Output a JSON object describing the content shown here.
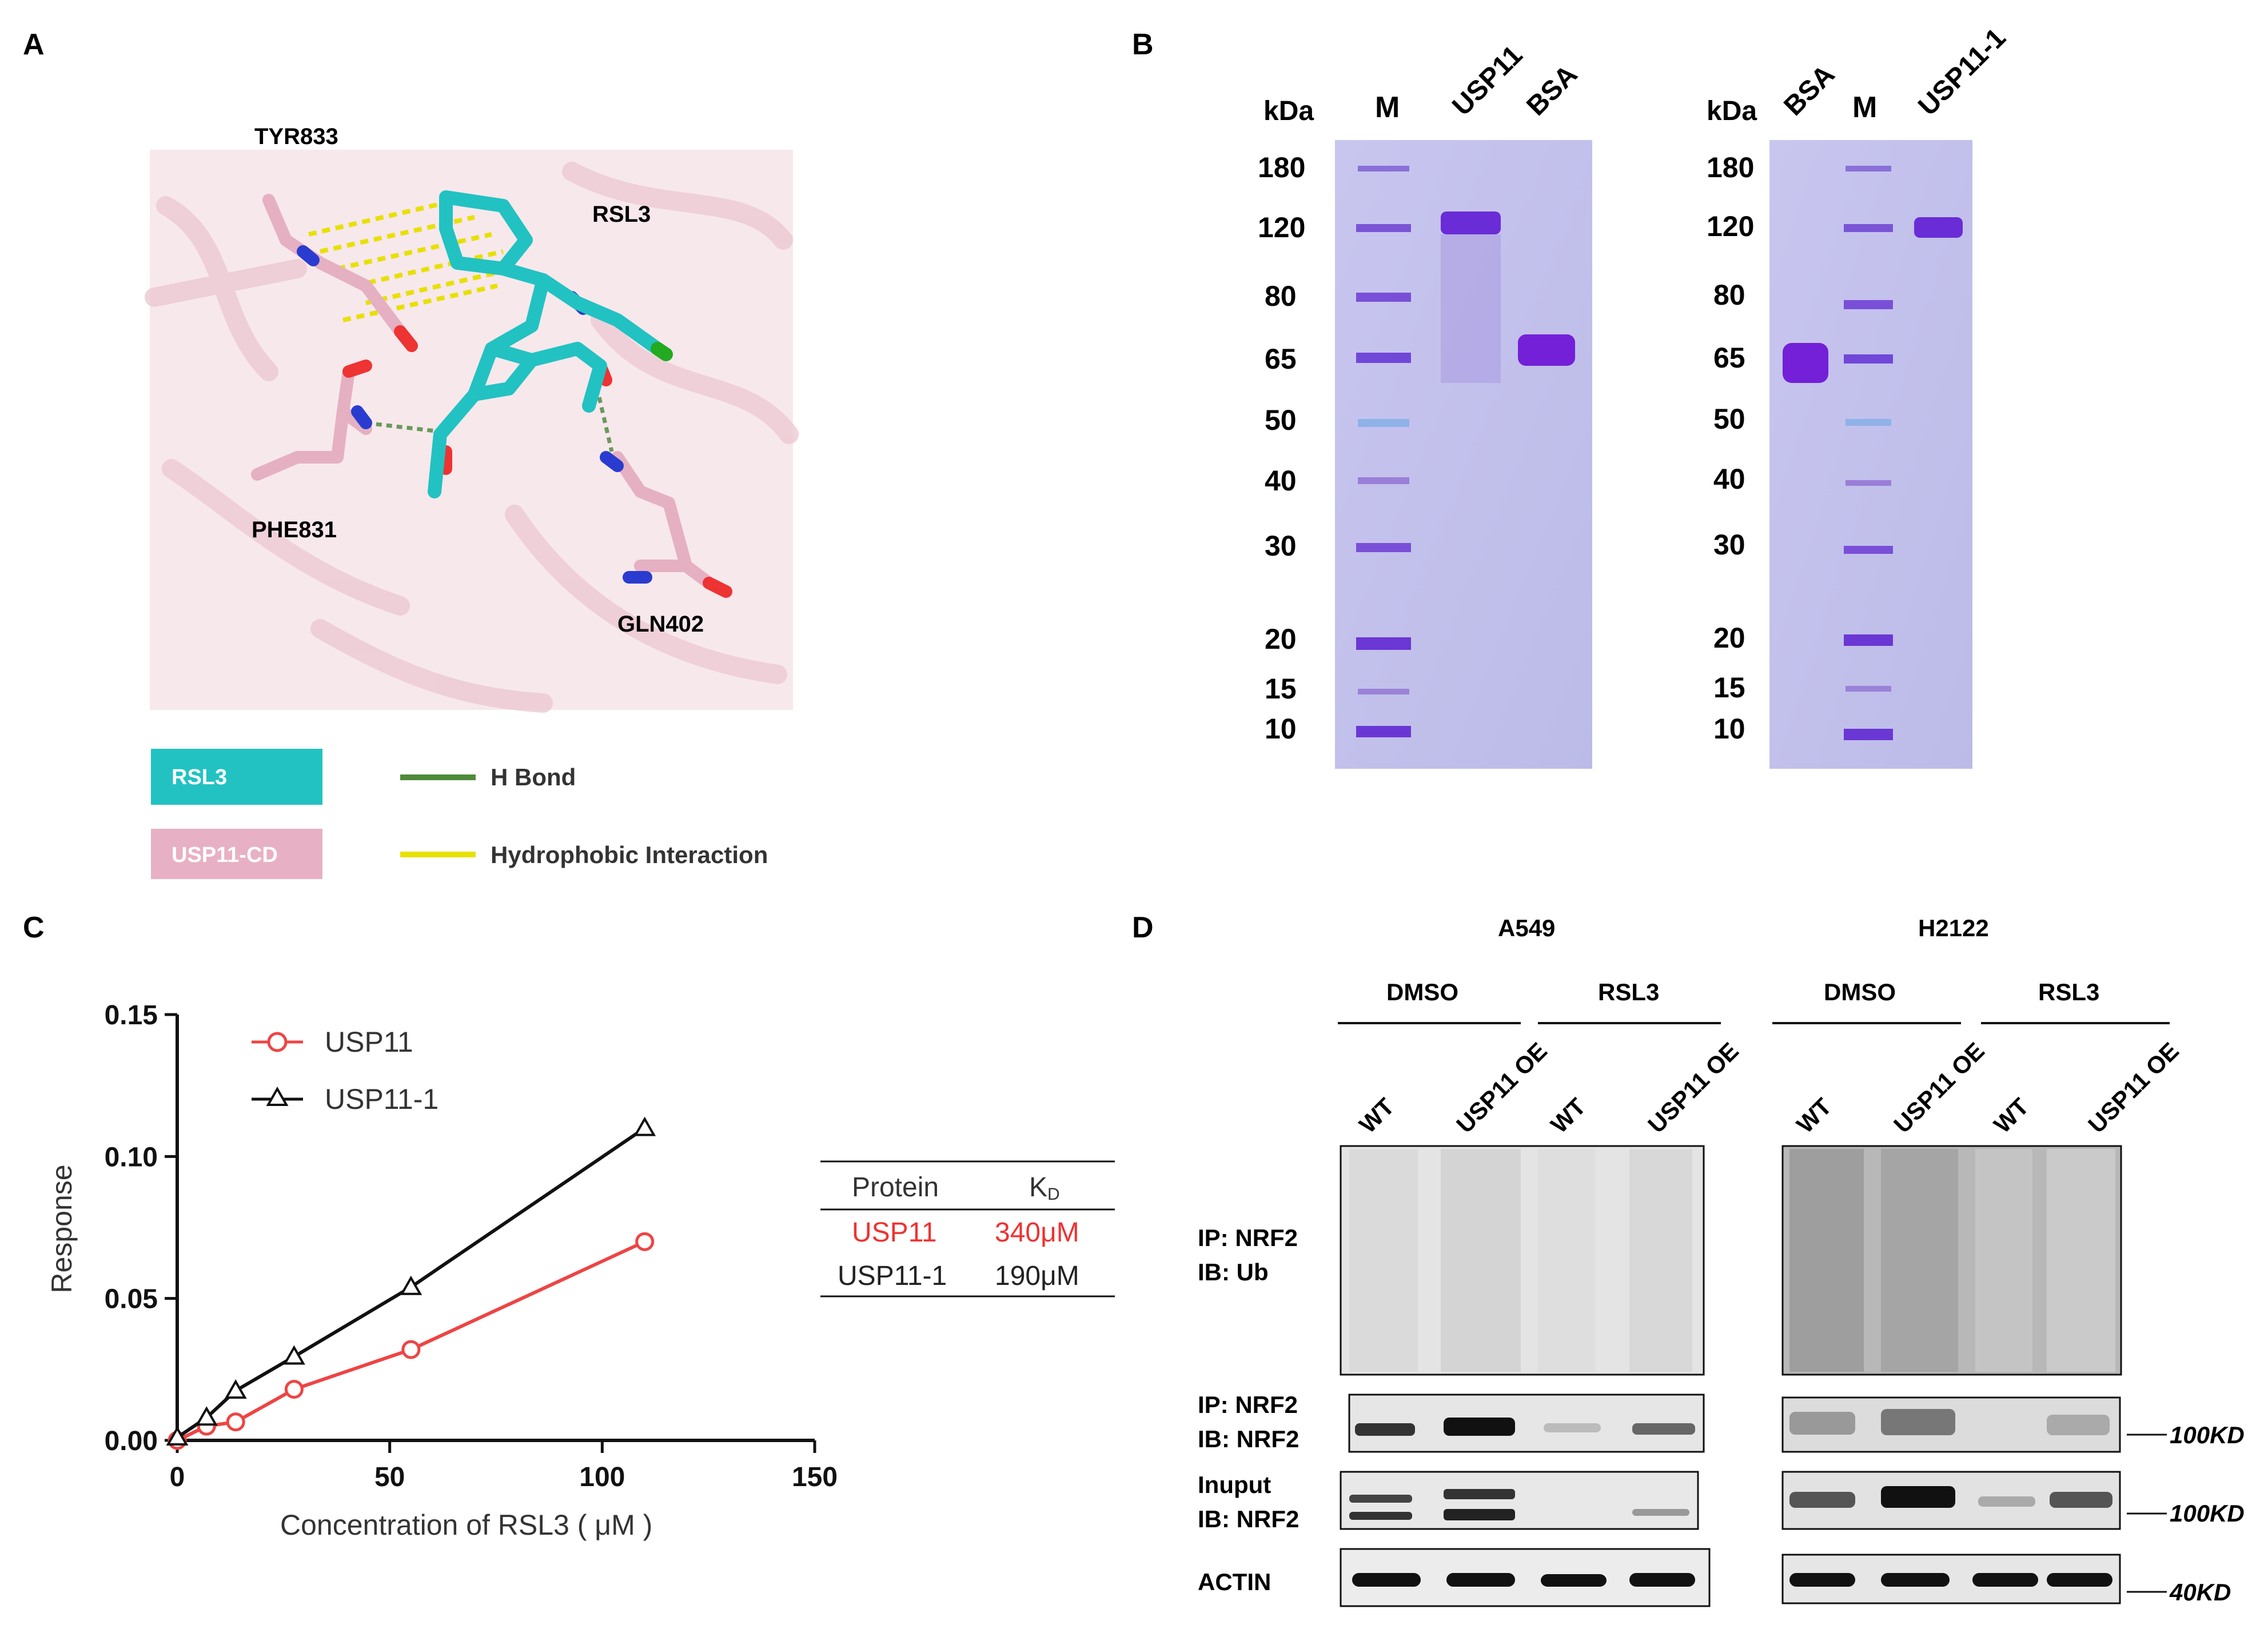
{
  "panels": {
    "a": {
      "letter": "A",
      "residues": [
        "TYR833",
        "RSL3",
        "PHE831",
        "GLN402"
      ],
      "legend": {
        "ligand_box": "RSL3",
        "protein_box": "USP11-CD",
        "hbond": "H Bond",
        "hydrophobic": "Hydrophobic Interaction"
      },
      "colors": {
        "ligand": "#22c2c2",
        "protein": "#e8b0c4",
        "hbond": "#4f8a3a",
        "hydrophobic": "#e8e000"
      }
    },
    "b": {
      "letter": "B",
      "gel1": {
        "kda_title": "kDa",
        "lanes": [
          "M",
          "USP11",
          "BSA"
        ]
      },
      "gel2": {
        "kda_title": "kDa",
        "lanes": [
          "BSA",
          "M",
          "USP11-1"
        ]
      },
      "markers": [
        "180",
        "120",
        "80",
        "65",
        "50",
        "40",
        "30",
        "20",
        "15",
        "10"
      ]
    },
    "c": {
      "letter": "C",
      "table": {
        "headers": [
          "Protein",
          "K",
          "D"
        ],
        "rows": [
          {
            "protein": "USP11",
            "kd": "340μM",
            "color": "#ee3333"
          },
          {
            "protein": "USP11-1",
            "kd": "190μM",
            "color": "#222222"
          }
        ]
      }
    },
    "d": {
      "letter": "D",
      "cell_lines": [
        "A549",
        "H2122"
      ],
      "treatments": [
        "DMSO",
        "RSL3",
        "DMSO",
        "RSL3"
      ],
      "lanes": [
        "WT",
        "USP11 OE",
        "WT",
        "USP11 OE",
        "WT",
        "USP11 OE",
        "WT",
        "USP11 OE"
      ],
      "rows": {
        "ub": [
          "IP: NRF2",
          "IB: Ub"
        ],
        "ipnrf2": [
          "IP: NRF2",
          "IB: NRF2"
        ],
        "input": [
          "Inuput",
          "IB: NRF2"
        ],
        "actin": [
          "ACTIN"
        ]
      },
      "size_markers": [
        "100KD",
        "100KD",
        "40KD"
      ]
    }
  },
  "chart_data": {
    "type": "line",
    "title": "",
    "xlabel": "Concentration of RSL3 ( μM )",
    "ylabel": "Response",
    "xlim": [
      0,
      150
    ],
    "ylim": [
      0,
      0.15
    ],
    "xticks": [
      "0",
      "50",
      "100",
      "150"
    ],
    "yticks": [
      "0.00",
      "0.05",
      "0.10",
      "0.15"
    ],
    "legend_position": "top-left",
    "series": [
      {
        "name": "USP11",
        "color": "#ee4444",
        "marker": "circle",
        "x": [
          0,
          6.9,
          13.75,
          27.5,
          55,
          110
        ],
        "y": [
          0,
          0.005,
          0.0065,
          0.018,
          0.032,
          0.07
        ]
      },
      {
        "name": "USP11-1",
        "color": "#111111",
        "marker": "triangle",
        "x": [
          0,
          6.9,
          13.75,
          27.5,
          55,
          110
        ],
        "y": [
          0.001,
          0.008,
          0.0175,
          0.0295,
          0.054,
          0.11
        ]
      }
    ]
  }
}
